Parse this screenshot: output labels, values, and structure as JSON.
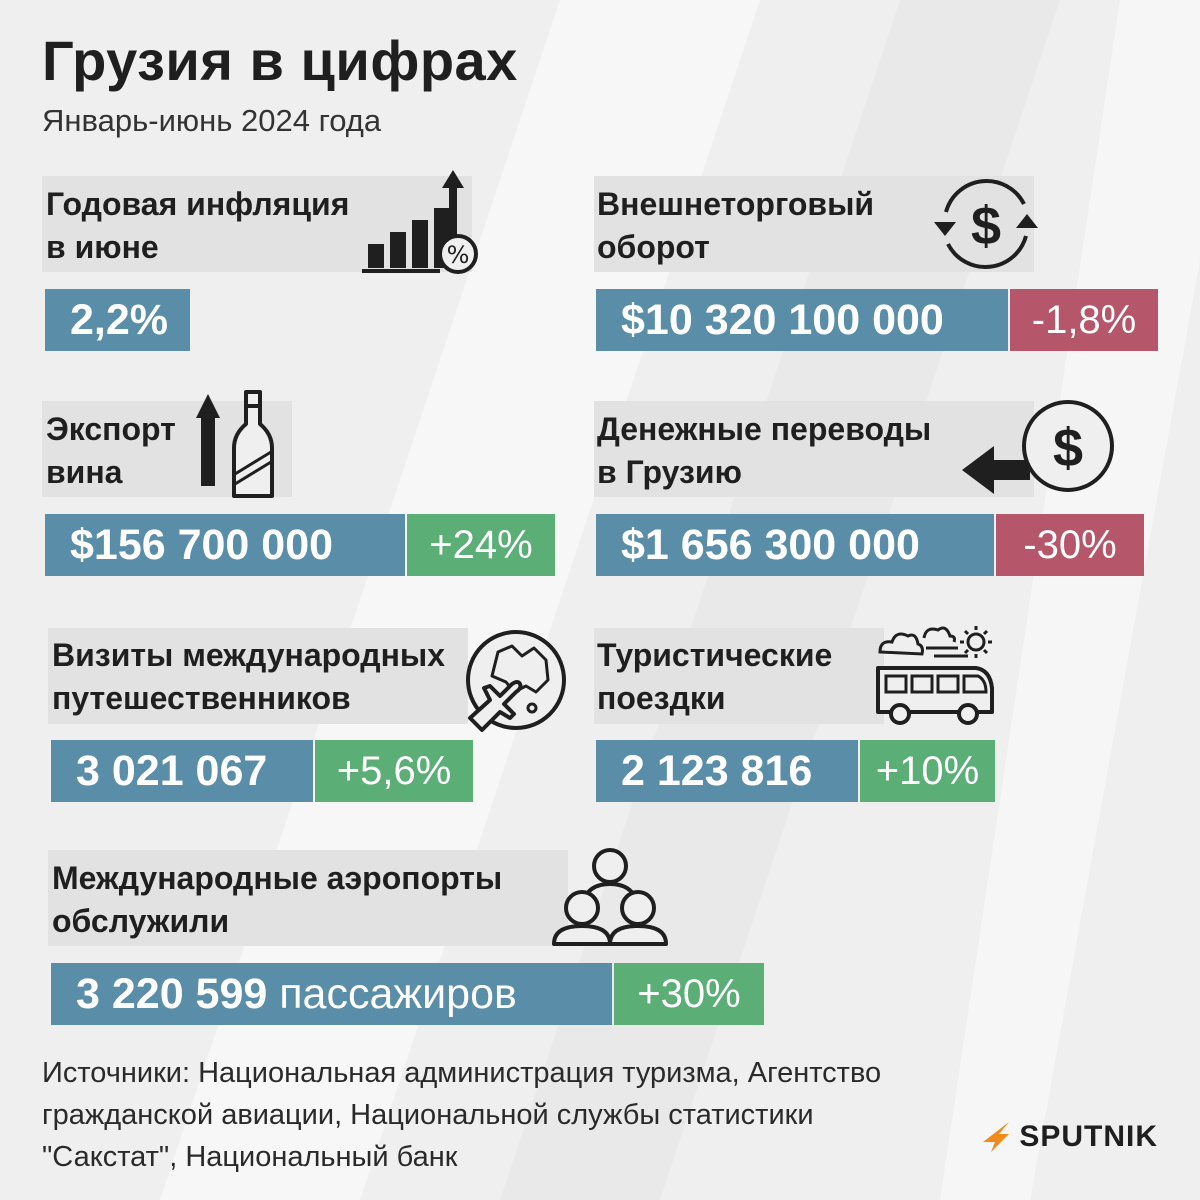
{
  "header": {
    "title": "Грузия в цифрах",
    "subtitle": "Январь-июнь 2024 года"
  },
  "colors": {
    "value_bg": "#5a8ea8",
    "increase_bg": "#5aae76",
    "decrease_bg": "#b5566a",
    "label_bg": "#e2e2e2",
    "logo_accent": "#f28a18"
  },
  "stats": {
    "inflation": {
      "label_l1": "Годовая инфляция",
      "label_l2": "в июне",
      "value": "2,2%",
      "icon": "rising-bar-chart-percent-icon"
    },
    "trade": {
      "label_l1": "Внешнеторговый",
      "label_l2": "оборот",
      "value": "$10 320 100 000",
      "change": "-1,8%",
      "icon": "dollar-exchange-icon"
    },
    "wine": {
      "label_l1": "Экспорт",
      "label_l2": "вина",
      "value": "$156 700 000",
      "change": "+24%",
      "icon": "wine-bottle-up-arrow-icon"
    },
    "remittances": {
      "label_l1": "Денежные переводы",
      "label_l2": "в Грузию",
      "value": "$1 656 300 000",
      "change": "-30%",
      "icon": "dollar-incoming-arrow-icon"
    },
    "visits": {
      "label_l1": "Визиты международных",
      "label_l2": "путешественников",
      "value": "3 021 067",
      "change": "+5,6%",
      "icon": "globe-airplane-icon"
    },
    "trips": {
      "label_l1": "Туристические",
      "label_l2": "поездки",
      "value": "2 123 816",
      "change": "+10%",
      "icon": "bus-weather-icon"
    },
    "airports": {
      "label_l1": "Международные аэропорты",
      "label_l2": "обслужили",
      "value": "3 220 599",
      "value_unit": "пассажиров",
      "change": "+30%",
      "icon": "people-group-icon"
    }
  },
  "footer": {
    "sources_l1": "Источники: Национальная администрация туризма, Агентство",
    "sources_l2": "гражданской авиации, Национальной службы статистики",
    "sources_l3": "\"Сакстат\", Национальный банк",
    "logo_text": "SPUTNIK"
  }
}
